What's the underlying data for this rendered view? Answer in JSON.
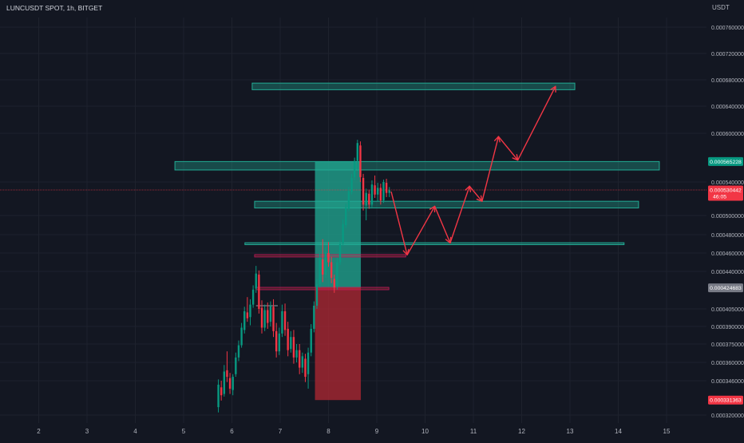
{
  "header": {
    "symbol_line": "LUNCUSDT SPOT, 1h, BITGET"
  },
  "chart_data": {
    "type": "candlestick",
    "symbol": "LUNCUSDT",
    "exchange": "BITGET",
    "timeframe": "1h",
    "currency": "USDT",
    "x_ticks": [
      "2",
      "3",
      "4",
      "5",
      "6",
      "7",
      "8",
      "9",
      "10",
      "11",
      "12",
      "13",
      "14",
      "15"
    ],
    "y_ticks": [
      "0.000760000",
      "0.000720000",
      "0.000680000",
      "0.000640000",
      "0.000600000",
      "0.000540000",
      "0.000500000",
      "0.000480000",
      "0.000460000",
      "0.000440000",
      "0.000405000",
      "0.000390000",
      "0.000375000",
      "0.000360000",
      "0.000346000",
      "0.000320000"
    ],
    "y_tick_values": [
      0.00076,
      0.00072,
      0.00068,
      0.00064,
      0.0006,
      0.00054,
      0.0005,
      0.00048,
      0.00046,
      0.00044,
      0.000405,
      0.00039,
      0.000375,
      0.00036,
      0.000346,
      0.00032
    ],
    "ylim": [
      0.0003085,
      0.000788
    ],
    "xlim": [
      1.22,
      15.4
    ],
    "price_labels": {
      "zone_top": {
        "text": "0.000565228",
        "value": 0.000565228,
        "color": "#089981"
      },
      "current": {
        "text": "0.000530442",
        "value": 0.000530442,
        "countdown": "46:05",
        "color": "#f23645"
      },
      "entry": {
        "text": "0.000424683",
        "value": 0.000424683,
        "color": "#787b86"
      },
      "stop": {
        "text": "0.000331363",
        "value": 0.000331363,
        "color": "#f23645"
      }
    },
    "current_price": 0.000530442,
    "zones": [
      {
        "x0": 6.42,
        "x1": 13.1,
        "y_top": 0.000675,
        "y_bottom": 0.000665
      },
      {
        "x0": 4.82,
        "x1": 14.85,
        "y_top": 0.0005652,
        "y_bottom": 0.0005548
      },
      {
        "x0": 6.47,
        "x1": 14.42,
        "y_top": 0.000517,
        "y_bottom": 0.000509
      },
      {
        "x0": 6.27,
        "x1": 14.12,
        "y_top": 0.0004712,
        "y_bottom": 0.0004691
      }
    ],
    "position": {
      "x0": 7.72,
      "x1": 8.67,
      "target": 0.000565228,
      "entry": 0.000424683,
      "stop": 0.000331363
    },
    "red_lines": [
      {
        "x0": 6.47,
        "x1": 9.6,
        "y": 0.000457
      },
      {
        "x0": 6.5,
        "x1": 9.25,
        "y": 0.000424
      }
    ],
    "projection_path": [
      [
        9.3,
        0.000528
      ],
      [
        9.63,
        0.000458
      ],
      [
        10.2,
        0.000511
      ],
      [
        10.52,
        0.000471
      ],
      [
        10.92,
        0.000535
      ],
      [
        11.18,
        0.000517
      ],
      [
        11.52,
        0.000596
      ],
      [
        11.92,
        0.000567
      ],
      [
        12.7,
        0.00067
      ]
    ],
    "candles": [
      [
        5.72,
        0.000326,
        0.000347,
        0.000322,
        0.000343
      ],
      [
        5.78,
        0.000341,
        0.000346,
        0.000331,
        0.000335
      ],
      [
        5.84,
        0.000336,
        0.000358,
        0.000334,
        0.000353
      ],
      [
        5.9,
        0.000354,
        0.000369,
        0.000345,
        0.000349
      ],
      [
        5.96,
        0.000348,
        0.000352,
        0.000336,
        0.00034
      ],
      [
        6.02,
        0.000339,
        0.000351,
        0.000335,
        0.000349
      ],
      [
        6.08,
        0.000351,
        0.000368,
        0.000349,
        0.000364
      ],
      [
        6.14,
        0.000364,
        0.000378,
        0.000361,
        0.000374
      ],
      [
        6.2,
        0.000374,
        0.000393,
        0.000372,
        0.000389
      ],
      [
        6.26,
        0.000387,
        0.000407,
        0.000384,
        0.000403
      ],
      [
        6.32,
        0.000402,
        0.000416,
        0.000394,
        0.000397
      ],
      [
        6.38,
        0.000398,
        0.000414,
        0.000391,
        0.000409
      ],
      [
        6.44,
        0.000409,
        0.000427,
        0.000406,
        0.000423
      ],
      [
        6.5,
        0.000424,
        0.000446,
        0.00042,
        0.000438
      ],
      [
        6.56,
        0.000437,
        0.000441,
        0.000401,
        0.000405
      ],
      [
        6.62,
        0.000406,
        0.000413,
        0.000384,
        0.000389
      ],
      [
        6.68,
        0.000389,
        0.000409,
        0.000386,
        0.000404
      ],
      [
        6.74,
        0.000404,
        0.000411,
        0.000388,
        0.000393
      ],
      [
        6.8,
        0.000394,
        0.000412,
        0.00039,
        0.000408
      ],
      [
        6.86,
        0.000407,
        0.000414,
        0.000381,
        0.000386
      ],
      [
        6.92,
        0.000386,
        0.000393,
        0.000364,
        0.000369
      ],
      [
        6.98,
        0.000369,
        0.000389,
        0.000366,
        0.000384
      ],
      [
        7.04,
        0.000384,
        0.000409,
        0.000381,
        0.000403
      ],
      [
        7.1,
        0.000403,
        0.00041,
        0.000382,
        0.000387
      ],
      [
        7.16,
        0.000388,
        0.000394,
        0.000365,
        0.00037
      ],
      [
        7.22,
        0.000371,
        0.000386,
        0.000368,
        0.000381
      ],
      [
        7.28,
        0.000381,
        0.000387,
        0.000359,
        0.000364
      ],
      [
        7.34,
        0.000364,
        0.000375,
        0.00036,
        0.00037
      ],
      [
        7.4,
        0.00037,
        0.000375,
        0.000351,
        0.000356
      ],
      [
        7.46,
        0.000356,
        0.000368,
        0.000352,
        0.000365
      ],
      [
        7.52,
        0.000363,
        0.000367,
        0.000345,
        0.000349
      ],
      [
        7.58,
        0.000351,
        0.000372,
        0.00034,
        0.000368
      ],
      [
        7.64,
        0.000368,
        0.000392,
        0.000365,
        0.000388
      ],
      [
        7.7,
        0.000388,
        0.000412,
        0.000385,
        0.000408
      ],
      [
        7.76,
        0.000408,
        0.000433,
        0.000405,
        0.000428
      ],
      [
        7.82,
        0.000428,
        0.00046,
        0.000425,
        0.000455
      ],
      [
        7.88,
        0.000453,
        0.000475,
        0.00043,
        0.000437
      ],
      [
        7.94,
        0.000437,
        0.000466,
        0.000434,
        0.000461
      ],
      [
        8.0,
        0.00046,
        0.000472,
        0.000445,
        0.00045
      ],
      [
        8.06,
        0.00045,
        0.000456,
        0.000429,
        0.000434
      ],
      [
        8.12,
        0.000433,
        0.000437,
        0.00042,
        0.000425
      ],
      [
        8.18,
        0.000426,
        0.000455,
        0.000423,
        0.00045
      ],
      [
        8.24,
        0.00045,
        0.000474,
        0.000447,
        0.00047
      ],
      [
        8.3,
        0.000471,
        0.000496,
        0.000468,
        0.000491
      ],
      [
        8.36,
        0.00049,
        0.000514,
        0.000487,
        0.000509
      ],
      [
        8.42,
        0.000508,
        0.000534,
        0.000505,
        0.000529
      ],
      [
        8.48,
        0.000528,
        0.00055,
        0.000525,
        0.000545
      ],
      [
        8.54,
        0.000546,
        0.00057,
        0.000542,
        0.000566
      ],
      [
        8.6,
        0.000566,
        0.000592,
        0.000555,
        0.000588
      ],
      [
        8.66,
        0.000585,
        0.00059,
        0.00054,
        0.000546
      ],
      [
        8.72,
        0.000545,
        0.00055,
        0.000506,
        0.000513
      ],
      [
        8.78,
        0.000512,
        0.000532,
        0.000495,
        0.000527
      ],
      [
        8.84,
        0.000526,
        0.000531,
        0.000508,
        0.000513
      ],
      [
        8.9,
        0.000513,
        0.000542,
        0.00051,
        0.000537
      ],
      [
        8.96,
        0.000536,
        0.000548,
        0.000521,
        0.000525
      ],
      [
        9.02,
        0.000525,
        0.000539,
        0.000517,
        0.000533
      ],
      [
        9.08,
        0.000533,
        0.000538,
        0.000513,
        0.000518
      ],
      [
        9.14,
        0.000518,
        0.000543,
        0.000515,
        0.00054
      ],
      [
        9.2,
        0.000539,
        0.000544,
        0.000522,
        0.000527
      ],
      [
        9.26,
        0.000527,
        0.000534,
        0.000522,
        0.00053
      ]
    ]
  }
}
